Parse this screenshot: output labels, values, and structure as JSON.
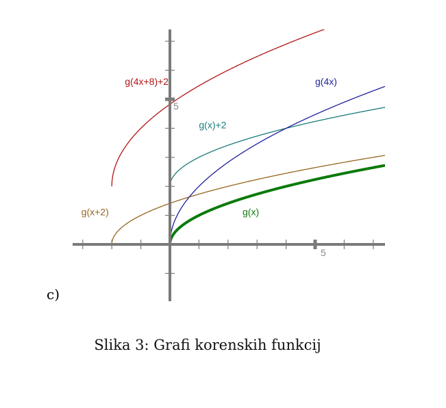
{
  "chart_data": {
    "type": "line",
    "xlim": [
      -3.25,
      7.5
    ],
    "ylim": [
      -2,
      7.5
    ],
    "x_ticks": [
      -3,
      -2,
      -1,
      1,
      2,
      3,
      4,
      6,
      7
    ],
    "x_major_tick": 5,
    "x_major_tick_label": "5",
    "y_ticks": [
      -1,
      1,
      2,
      3,
      4,
      6,
      7
    ],
    "y_major_tick": 5,
    "y_major_tick_label": "5",
    "grid": false,
    "series": [
      {
        "name": "g(x)",
        "formula": "sqrt(x)",
        "domain_start": 0,
        "color": "#0b7a0b",
        "width": 4
      },
      {
        "name": "g(x+2)",
        "formula": "sqrt(x+2)",
        "domain_start": -2,
        "color": "#96641e",
        "width": 1.3
      },
      {
        "name": "g(x)+2",
        "formula": "sqrt(x)+2",
        "domain_start": 0,
        "color": "#1a7a7a",
        "width": 1.3
      },
      {
        "name": "g(4x)",
        "formula": "sqrt(4x)",
        "domain_start": 0,
        "color": "#1f1f9a",
        "width": 1.3
      },
      {
        "name": "g(4x+8)+2",
        "formula": "sqrt(4x+8)+2",
        "domain_start": -2,
        "color": "#b21414",
        "width": 1.3
      }
    ]
  },
  "panel_label": "c)",
  "caption": "Slika 3: Grafi korenskih funkcij"
}
